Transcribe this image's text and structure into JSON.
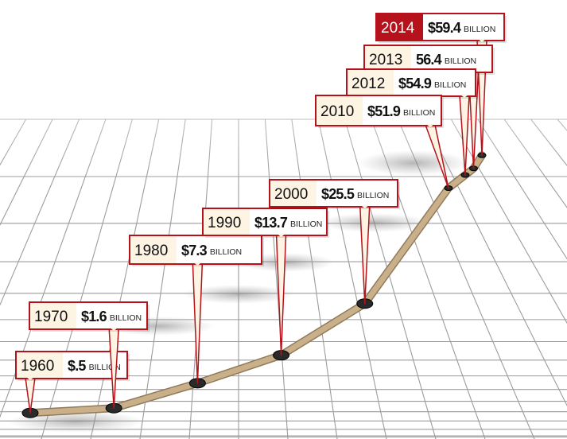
{
  "chart_data": {
    "type": "line",
    "title": "",
    "xlabel": "",
    "ylabel": "",
    "unit_label": "BILLION",
    "grid": true,
    "points": [
      {
        "year": "1960",
        "value_label": "$.5",
        "value": 0.5
      },
      {
        "year": "1970",
        "value_label": "$1.6",
        "value": 1.6
      },
      {
        "year": "1980",
        "value_label": "$7.3",
        "value": 7.3
      },
      {
        "year": "1990",
        "value_label": "$13.7",
        "value": 13.7
      },
      {
        "year": "2000",
        "value_label": "$25.5",
        "value": 25.5
      },
      {
        "year": "2010",
        "value_label": "$51.9",
        "value": 51.9
      },
      {
        "year": "2012",
        "value_label": "$54.9",
        "value": 54.9
      },
      {
        "year": "2013",
        "value_label": "56.4",
        "value": 56.4
      },
      {
        "year": "2014",
        "value_label": "$59.4",
        "value": 59.4
      }
    ],
    "highlight_year": "2014",
    "colors": {
      "line": "#c9b08a",
      "callout_border": "#b5121b",
      "highlight_fill": "#b5121b",
      "callout_fill": "#fdf4e4",
      "marker": "#2a2a2a"
    }
  }
}
